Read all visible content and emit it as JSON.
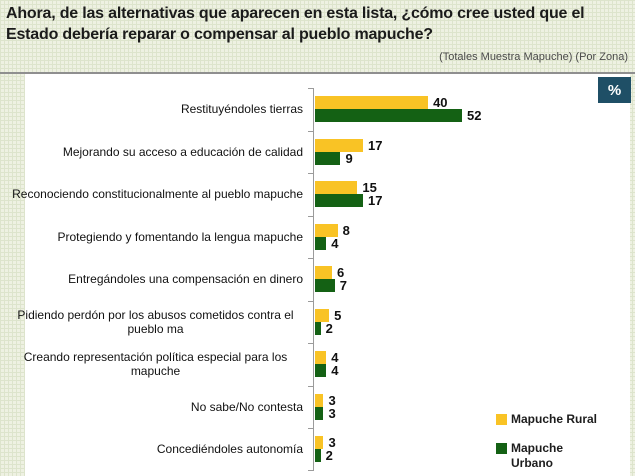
{
  "header": {
    "title": "Ahora, de las alternativas que aparecen en esta lista, ¿cómo cree usted que el Estado debería reparar o compensar al pueblo mapuche?",
    "subtitle": "(Totales Muestra Mapuche) (Por Zona)",
    "percent_badge": "%"
  },
  "colors": {
    "rural": "#F9C325",
    "urbano": "#146114",
    "badge_bg": "#1F4F66",
    "axis": "#9B9B9B",
    "panel_bg": "#FFFFFF",
    "page_bg": "#EEF1E2"
  },
  "chart_data": {
    "type": "bar",
    "orientation": "horizontal",
    "title": "Ahora, de las alternativas que aparecen en esta lista, ¿cómo cree usted que el Estado debería reparar o compensar al pueblo mapuche?",
    "subtitle": "(Totales Muestra Mapuche) (Por Zona)",
    "unit": "%",
    "categories": [
      "Restituyéndoles tierras",
      "Mejorando su acceso a educación de calidad",
      "Reconociendo constitucionalmente al pueblo mapuche",
      "Protegiendo y fomentando la lengua mapuche",
      "Entregándoles una compensación en dinero",
      "Pidiendo perdón por los abusos cometidos contra el pueblo ma",
      "Creando representación política especial para los mapuche",
      "No sabe/No contesta",
      "Concediéndoles autonomía"
    ],
    "series": [
      {
        "name": "Mapuche Rural",
        "color": "#F9C325",
        "values": [
          40,
          17,
          15,
          8,
          6,
          5,
          4,
          3,
          3
        ]
      },
      {
        "name": "Mapuche Urbano",
        "color": "#146114",
        "values": [
          52,
          9,
          17,
          4,
          7,
          2,
          4,
          3,
          2
        ]
      }
    ],
    "xlim": [
      0,
      60
    ],
    "value_labels": true,
    "grid": false,
    "legend_position": "bottom-right"
  },
  "legend": {
    "items": [
      {
        "label": "Mapuche Rural",
        "color": "#F9C325"
      },
      {
        "label": "Mapuche Urbano",
        "color": "#146114"
      }
    ]
  }
}
